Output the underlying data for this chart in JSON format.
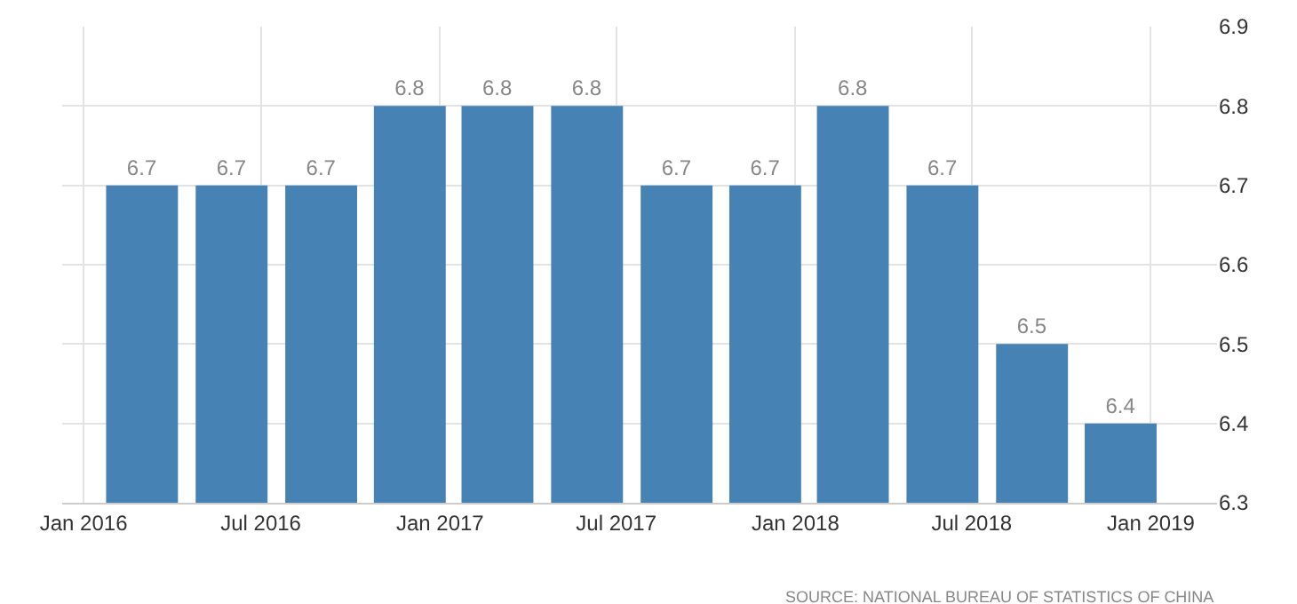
{
  "chart_data": {
    "type": "bar",
    "x": [
      "2016-03-01",
      "2016-06-01",
      "2016-09-01",
      "2016-12-01",
      "2017-03-01",
      "2017-06-01",
      "2017-09-01",
      "2017-12-01",
      "2018-03-01",
      "2018-06-01",
      "2018-09-01",
      "2018-12-01"
    ],
    "values": [
      6.7,
      6.7,
      6.7,
      6.8,
      6.8,
      6.8,
      6.7,
      6.7,
      6.8,
      6.7,
      6.5,
      6.4
    ],
    "color": "#4682b4",
    "data_labels": true,
    "xlim": [
      "2015-12-10",
      "2019-03-10"
    ],
    "xticks": [
      {
        "value": "2016-01-01",
        "label": "Jan 2016"
      },
      {
        "value": "2016-07-01",
        "label": "Jul 2016"
      },
      {
        "value": "2017-01-01",
        "label": "Jan 2017"
      },
      {
        "value": "2017-07-01",
        "label": "Jul 2017"
      },
      {
        "value": "2018-01-01",
        "label": "Jan 2018"
      },
      {
        "value": "2018-07-01",
        "label": "Jul 2018"
      },
      {
        "value": "2019-01-01",
        "label": "Jan 2019"
      }
    ],
    "ylim": [
      6.3,
      6.9
    ],
    "yticks": [
      6.3,
      6.4,
      6.5,
      6.6,
      6.7,
      6.8,
      6.9
    ],
    "grid": true,
    "annotations": [
      "SOURCE: NATIONAL BUREAU OF STATISTICS OF CHINA"
    ]
  }
}
